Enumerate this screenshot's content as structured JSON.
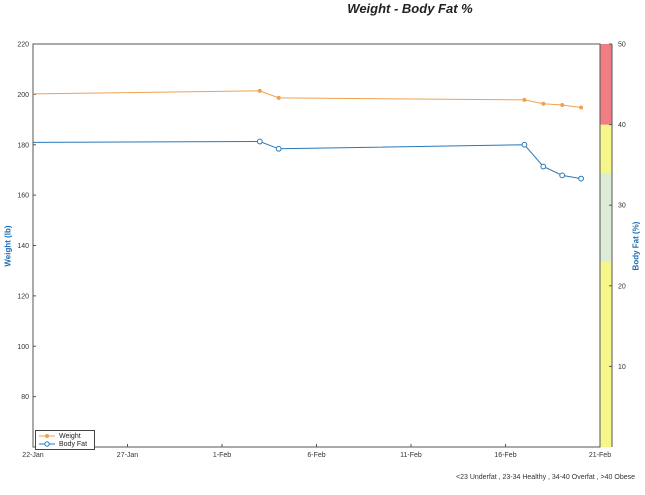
{
  "chart_data": {
    "type": "line",
    "title": "Weight - Body Fat %",
    "xlabel": "",
    "ylabel": "Weight (lb)",
    "y2label": "Body Fat (%)",
    "x_ticks": [
      "22-Jan",
      "27-Jan",
      "1-Feb",
      "6-Feb",
      "11-Feb",
      "16-Feb",
      "21-Feb"
    ],
    "x_range": [
      "22-Jan",
      "21-Feb"
    ],
    "ylim": [
      60,
      220
    ],
    "y_ticks": [
      80,
      100,
      120,
      140,
      160,
      180,
      200,
      220
    ],
    "y2lim": [
      0,
      50
    ],
    "y2_ticks": [
      10,
      20,
      30,
      40,
      50
    ],
    "grid": false,
    "legend_position": "bottom-left",
    "series": [
      {
        "name": "Weight",
        "axis": "left",
        "color": "#f0a050",
        "marker": "filled-circle",
        "points": [
          {
            "x": "22-Jan",
            "y": 200.2
          },
          {
            "x": "3-Feb",
            "y": 201.4
          },
          {
            "x": "4-Feb",
            "y": 198.6
          },
          {
            "x": "17-Feb",
            "y": 197.8
          },
          {
            "x": "18-Feb",
            "y": 196.3
          },
          {
            "x": "19-Feb",
            "y": 195.8
          },
          {
            "x": "20-Feb",
            "y": 194.8
          }
        ]
      },
      {
        "name": "Body Fat",
        "axis": "right",
        "color": "#2878b8",
        "marker": "open-circle",
        "points": [
          {
            "x": "22-Jan",
            "y": 37.8
          },
          {
            "x": "3-Feb",
            "y": 37.9
          },
          {
            "x": "4-Feb",
            "y": 37.0
          },
          {
            "x": "17-Feb",
            "y": 37.5
          },
          {
            "x": "18-Feb",
            "y": 34.8
          },
          {
            "x": "19-Feb",
            "y": 33.7
          },
          {
            "x": "20-Feb",
            "y": 33.3
          }
        ]
      }
    ],
    "bands": [
      {
        "from": 0,
        "to": 23,
        "color": "#f6f68a"
      },
      {
        "from": 23,
        "to": 34,
        "color": "#dcecd6"
      },
      {
        "from": 34,
        "to": 40,
        "color": "#f6f68a"
      },
      {
        "from": 40,
        "to": 50,
        "color": "#ef7e85"
      }
    ],
    "footnote": "<23 Underfat , 23-34 Healthy , 34-40 Overfat , >40 Obese"
  }
}
